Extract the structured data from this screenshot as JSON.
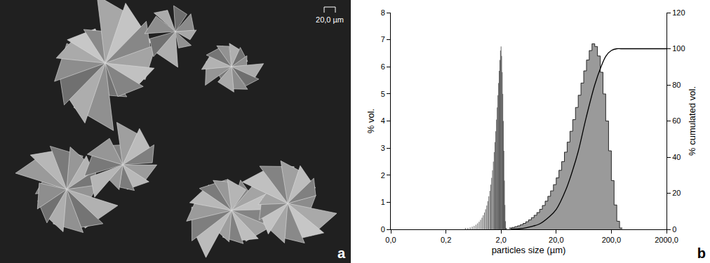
{
  "panel_labels": [
    "a",
    "b"
  ],
  "micrograph": {
    "scale_bar": "20,0 µm"
  },
  "chart_data": {
    "type": "histogram",
    "x_label": "particles size (µm)",
    "y_label": "% vol.",
    "y2_label": "% cumulated vol.",
    "log": "x",
    "grid": false,
    "color": "#9a9a9a",
    "xlim": [
      0.02,
      2000
    ],
    "xticks": [
      {
        "value": 0.02,
        "label": "0,0"
      },
      {
        "value": 0.2,
        "label": "0,2"
      },
      {
        "value": 2,
        "label": "2,0"
      },
      {
        "value": 20,
        "label": "20,0"
      },
      {
        "value": 200,
        "label": "200,0"
      },
      {
        "value": 2000,
        "label": "2000,0"
      }
    ],
    "ylim": [
      0,
      8
    ],
    "yticks": [
      0,
      1,
      2,
      3,
      4,
      5,
      6,
      7,
      8
    ],
    "y2lim": [
      0,
      120
    ],
    "y2ticks": [
      0,
      20,
      40,
      60,
      80,
      100,
      120
    ],
    "bins": [
      2.82,
      3.16,
      3.55,
      3.98,
      4.47,
      5.01,
      5.62,
      6.31,
      7.08,
      7.94,
      8.91,
      10,
      11.2,
      12.6,
      14.1,
      15.8,
      17.8,
      20,
      22.4,
      25.1,
      28.2,
      31.6,
      35.5,
      39.8,
      44.7,
      50.1,
      56.2,
      63.1,
      70.8,
      79.4,
      89.1,
      100,
      112,
      126,
      141,
      158,
      178,
      200,
      224,
      251,
      282,
      316
    ],
    "values": [
      0.05,
      0.07,
      0.1,
      0.13,
      0.17,
      0.22,
      0.28,
      0.35,
      0.43,
      0.52,
      0.62,
      0.74,
      0.88,
      1.04,
      1.22,
      1.42,
      1.65,
      1.9,
      2.18,
      2.5,
      2.85,
      3.22,
      3.62,
      4.05,
      4.5,
      4.95,
      5.4,
      5.85,
      6.25,
      6.6,
      6.85,
      6.75,
      6.4,
      5.8,
      5.0,
      4.0,
      2.9,
      1.8,
      0.9,
      0.3,
      0.05
    ],
    "series": [
      {
        "type": "line",
        "axis": "y2",
        "color": "#000000",
        "line_style": "solid",
        "x": [
          3,
          5,
          7,
          10,
          15,
          20,
          30,
          40,
          50,
          70,
          100,
          130,
          160,
          200,
          250,
          300,
          2000
        ],
        "values": [
          0,
          0.5,
          1.5,
          3,
          7,
          11,
          22,
          33,
          43,
          62,
          80,
          90,
          96,
          99,
          100,
          100,
          100
        ]
      }
    ]
  }
}
